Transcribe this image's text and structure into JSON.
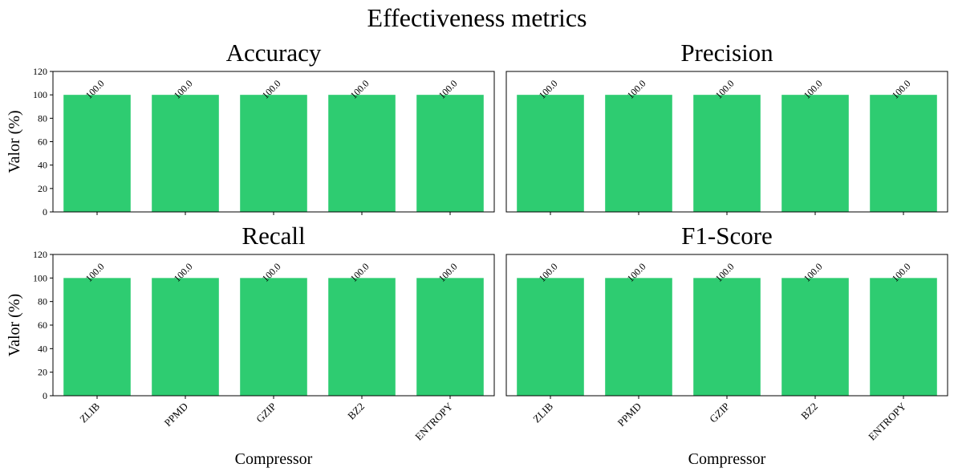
{
  "figure": {
    "suptitle": "Effectiveness metrics"
  },
  "colors": {
    "bar": "#2ecc71",
    "axis": "#000000",
    "background": "#ffffff"
  },
  "chart_data": [
    {
      "type": "bar",
      "title": "Accuracy",
      "categories": [
        "ZLIB",
        "PPMD",
        "GZIP",
        "BZ2",
        "ENTROPY"
      ],
      "values": [
        100.0,
        100.0,
        100.0,
        100.0,
        100.0
      ],
      "data_labels": [
        "100.0",
        "100.0",
        "100.0",
        "100.0",
        "100.0"
      ],
      "xlabel": "",
      "ylabel": "Valor (%)",
      "ylim": [
        0,
        120
      ],
      "yticks": [
        "0",
        "20",
        "40",
        "60",
        "80",
        "100",
        "120"
      ],
      "show_xticklabels": false,
      "show_yticklabels": true,
      "grid": false
    },
    {
      "type": "bar",
      "title": "Precision",
      "categories": [
        "ZLIB",
        "PPMD",
        "GZIP",
        "BZ2",
        "ENTROPY"
      ],
      "values": [
        100.0,
        100.0,
        100.0,
        100.0,
        100.0
      ],
      "data_labels": [
        "100.0",
        "100.0",
        "100.0",
        "100.0",
        "100.0"
      ],
      "xlabel": "",
      "ylabel": "",
      "ylim": [
        0,
        120
      ],
      "yticks": [],
      "show_xticklabels": false,
      "show_yticklabels": false,
      "grid": false
    },
    {
      "type": "bar",
      "title": "Recall",
      "categories": [
        "ZLIB",
        "PPMD",
        "GZIP",
        "BZ2",
        "ENTROPY"
      ],
      "values": [
        100.0,
        100.0,
        100.0,
        100.0,
        100.0
      ],
      "data_labels": [
        "100.0",
        "100.0",
        "100.0",
        "100.0",
        "100.0"
      ],
      "xlabel": "Compressor",
      "ylabel": "Valor (%)",
      "ylim": [
        0,
        120
      ],
      "yticks": [
        "0",
        "20",
        "40",
        "60",
        "80",
        "100",
        "120"
      ],
      "show_xticklabels": true,
      "show_yticklabels": true,
      "grid": false
    },
    {
      "type": "bar",
      "title": "F1-Score",
      "categories": [
        "ZLIB",
        "PPMD",
        "GZIP",
        "BZ2",
        "ENTROPY"
      ],
      "values": [
        100.0,
        100.0,
        100.0,
        100.0,
        100.0
      ],
      "data_labels": [
        "100.0",
        "100.0",
        "100.0",
        "100.0",
        "100.0"
      ],
      "xlabel": "Compressor",
      "ylabel": "",
      "ylim": [
        0,
        120
      ],
      "yticks": [],
      "show_xticklabels": true,
      "show_yticklabels": false,
      "grid": false
    }
  ]
}
